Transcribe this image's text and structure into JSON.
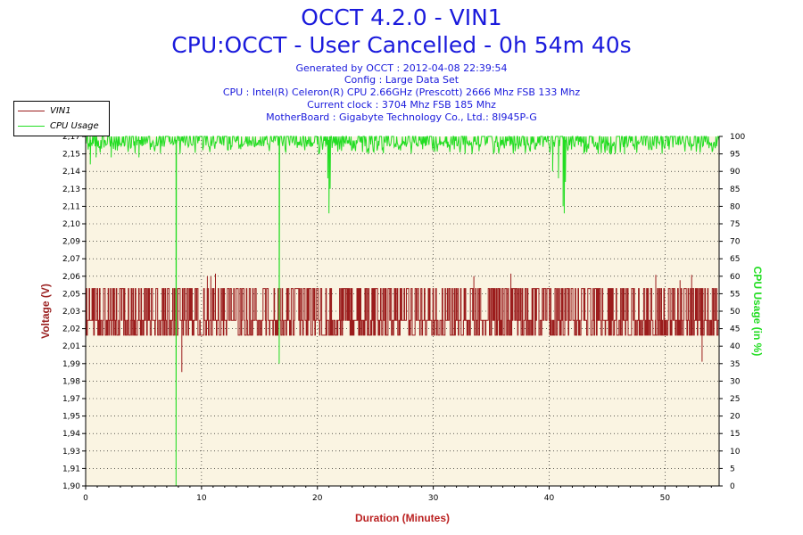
{
  "title": "OCCT 4.2.0 - VIN1",
  "subtitle": "CPU:OCCT - User Cancelled - 0h 54m 40s",
  "info_lines": [
    "Generated by OCCT : 2012-04-08 22:39:54",
    "Config : Large Data Set",
    "CPU : Intel(R) Celeron(R) CPU 2.66GHz (Prescott) 2666 Mhz FSB 133 Mhz",
    "Current clock : 3704 Mhz FSB 185 Mhz",
    "MotherBoard : Gigabyte Technology Co., Ltd.: 8I945P-G"
  ],
  "colors": {
    "title": "#1a1adc",
    "voltage": "#9b1c1c",
    "cpu": "#22dd22",
    "plot_bg": "#faf4e2",
    "axis_label_left": "#9b2222",
    "axis_label_right": "#22dd22",
    "axis_label_bottom": "#bb2222"
  },
  "chart_data": {
    "type": "line",
    "xlabel": "Duration (Minutes)",
    "ylabel": "Voltage (V)",
    "y2label": "CPU Usage (in %)",
    "xlim": [
      0,
      54.67
    ],
    "ylim": [
      1.9,
      2.17
    ],
    "y2lim": [
      0,
      100
    ],
    "x_ticks": [
      0,
      10,
      20,
      30,
      40,
      50
    ],
    "y_ticks": [
      "1,90",
      "1,91",
      "1,93",
      "1,94",
      "1,95",
      "1,97",
      "1,98",
      "1,99",
      "2,01",
      "2,02",
      "2,03",
      "2,05",
      "2,06",
      "2,07",
      "2,09",
      "2,10",
      "2,11",
      "2,13",
      "2,14",
      "2,15",
      "2,17"
    ],
    "y2_ticks": [
      0,
      5,
      10,
      15,
      20,
      25,
      30,
      35,
      40,
      45,
      50,
      55,
      60,
      65,
      70,
      75,
      80,
      85,
      90,
      95,
      100
    ],
    "grid": true,
    "legend_position": "top-left",
    "series": [
      {
        "name": "VIN1",
        "axis": "left",
        "baseline": 2.028,
        "levels": [
          2.0165,
          2.028,
          2.0525
        ],
        "spikes": [
          [
            8.3,
            1.988
          ],
          [
            10.5,
            2.062
          ],
          [
            10.8,
            2.062
          ],
          [
            11.2,
            2.064
          ],
          [
            33.5,
            2.062
          ],
          [
            36.7,
            2.064
          ],
          [
            49.2,
            2.063
          ],
          [
            51.3,
            2.059
          ],
          [
            52.3,
            2.063
          ],
          [
            53.2,
            1.996
          ]
        ]
      },
      {
        "name": "CPU Usage",
        "axis": "right",
        "baseline": 99,
        "dips": [
          [
            0.4,
            92
          ],
          [
            0.9,
            94
          ],
          [
            2.2,
            94
          ],
          [
            4.6,
            94
          ],
          [
            7.8,
            0
          ],
          [
            16.7,
            35
          ],
          [
            20.9,
            88
          ],
          [
            21.0,
            78
          ],
          [
            21.1,
            85
          ],
          [
            40.3,
            90
          ],
          [
            40.8,
            88
          ],
          [
            41.2,
            80
          ],
          [
            41.3,
            78
          ],
          [
            41.4,
            87
          ],
          [
            43.0,
            95
          ],
          [
            46.5,
            95
          ]
        ]
      }
    ]
  }
}
